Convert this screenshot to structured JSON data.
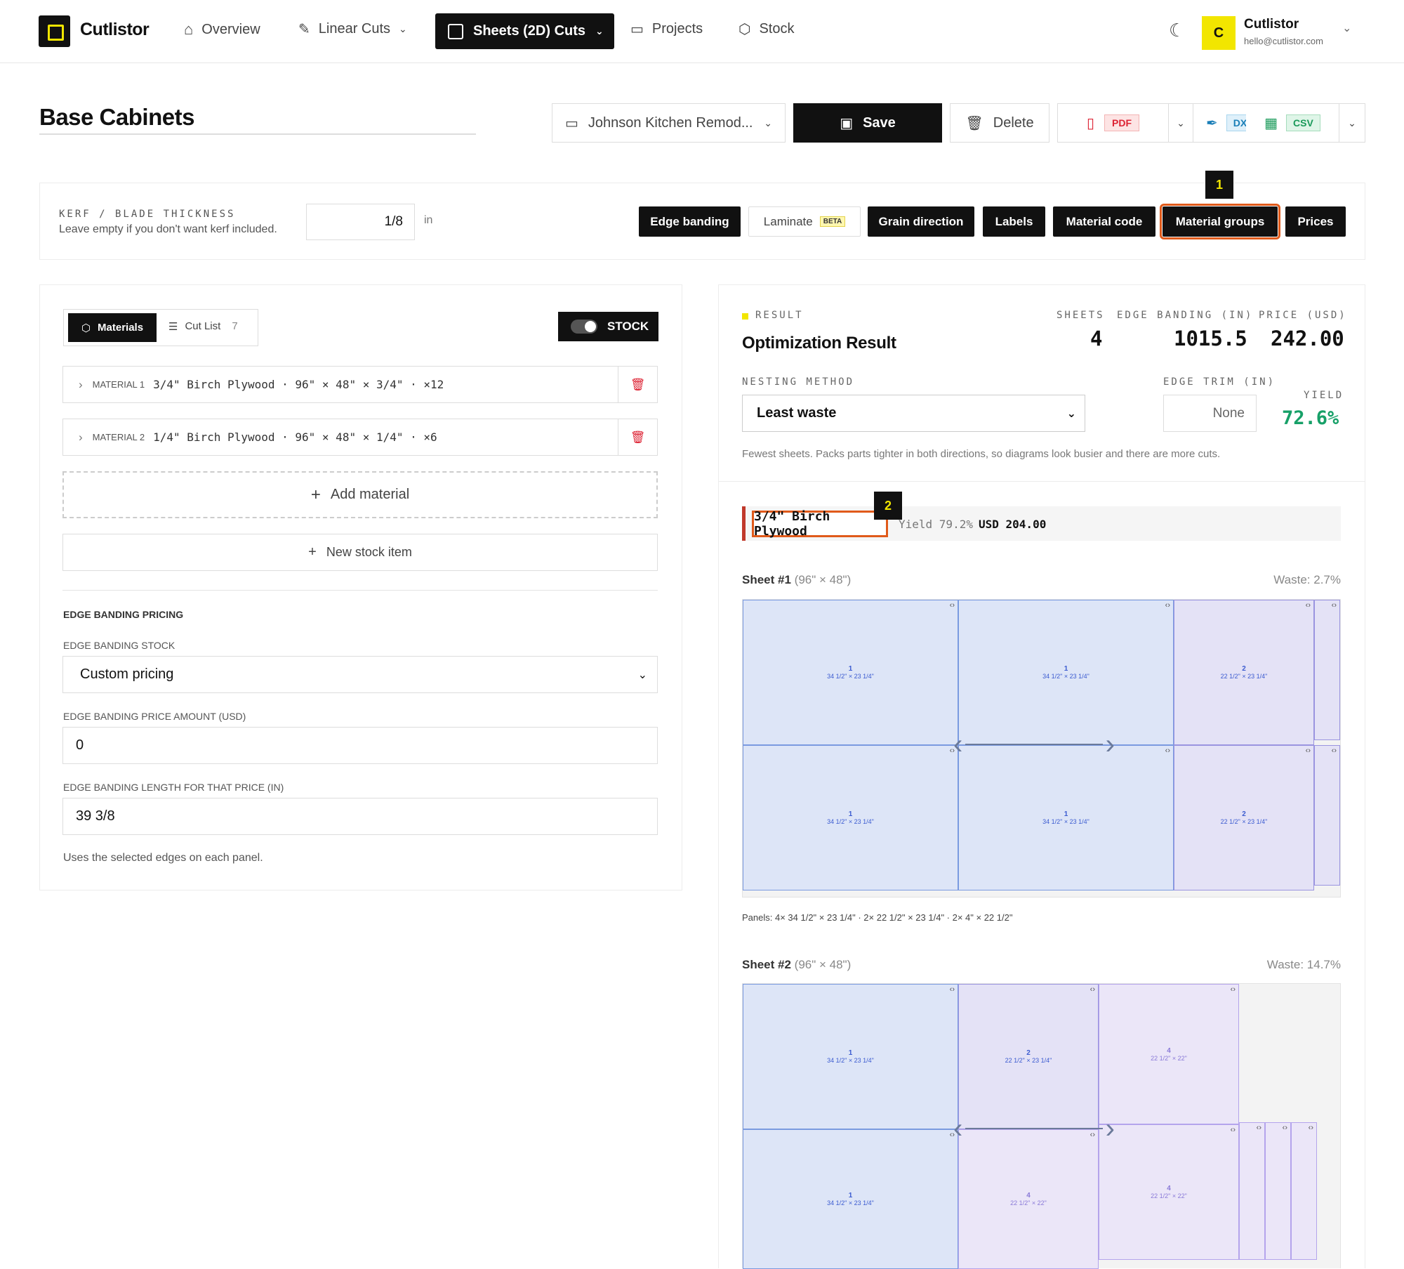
{
  "nav": {
    "brand": "Cutlistor",
    "items": [
      {
        "label": "Overview",
        "icon": "home-icon"
      },
      {
        "label": "Linear Cuts",
        "icon": "ruler-icon"
      },
      {
        "label": "Sheets (2D) Cuts",
        "icon": "square-icon"
      },
      {
        "label": "Projects",
        "icon": "folder-icon"
      },
      {
        "label": "Stock",
        "icon": "box-icon"
      }
    ],
    "user": {
      "initial": "C",
      "name": "Cutlistor",
      "email": "hello@cutlistor.com"
    }
  },
  "header": {
    "title": "Base Cabinets",
    "project": "Johnson Kitchen Remod...",
    "save": "Save",
    "delete": "Delete",
    "pdf": "PDF",
    "dxf": "DXF",
    "csv": "CSV"
  },
  "settings": {
    "kerf_label": "KERF / BLADE THICKNESS",
    "kerf_hint": "Leave empty if you don't want kerf included.",
    "kerf_value": "1/8",
    "kerf_unit": "in",
    "tags": [
      "Edge banding",
      "Laminate",
      "Grain direction",
      "Labels",
      "Material code",
      "Material groups",
      "Prices"
    ],
    "beta": "BETA"
  },
  "callouts": [
    "1",
    "2"
  ],
  "left": {
    "tab_materials": "Materials",
    "tab_cutlist": "Cut List",
    "cutlist_count": "7",
    "stock": "STOCK",
    "materials": [
      {
        "tag": "MATERIAL 1",
        "desc": "3/4\" Birch Plywood · 96\" × 48\" × 3/4\" · ×12"
      },
      {
        "tag": "MATERIAL 2",
        "desc": "1/4\" Birch Plywood · 96\" × 48\" × 1/4\" · ×6"
      }
    ],
    "add_material": "Add material",
    "new_stock": "New stock item",
    "eb_heading": "EDGE BANDING PRICING",
    "eb_stock_label": "EDGE BANDING STOCK",
    "eb_stock_value": "Custom pricing",
    "eb_price_label": "EDGE BANDING PRICE AMOUNT (USD)",
    "eb_price_value": "0",
    "eb_len_label": "EDGE BANDING LENGTH FOR THAT PRICE (IN)",
    "eb_len_value": "39 3/8",
    "eb_note": "Uses the selected edges on each panel."
  },
  "result": {
    "label": "RESULT",
    "title": "Optimization Result",
    "sheets_label": "SHEETS",
    "sheets": "4",
    "eb_label": "EDGE BANDING (IN)",
    "eb": "1015.5",
    "price_label": "PRICE (USD)",
    "price": "242.00",
    "nesting_label": "NESTING METHOD",
    "nesting": "Least waste",
    "trim_label": "EDGE TRIM (IN)",
    "trim": "None",
    "yield_label": "YIELD",
    "yield": "72.6%",
    "note": "Fewest sheets. Packs parts tighter in both directions, so diagrams look busier and there are more cuts.",
    "group_name": "3/4\" Birch Plywood",
    "group_yield": "Yield 79.2%",
    "group_price": "USD 204.00",
    "sheet1": {
      "title": "Sheet #1",
      "dims": "(96\" × 48\")",
      "waste": "Waste: 2.7%",
      "panels": "Panels: 4× 34 1/2\" × 23 1/4\" · 2× 22 1/2\" × 23 1/4\" · 2× 4\" × 22 1/2\""
    },
    "sheet2": {
      "title": "Sheet #2",
      "dims": "(96\" × 48\")",
      "waste": "Waste: 14.7%"
    },
    "part_labels": {
      "p1": "34 1/2\" × 23 1/4\"",
      "p2": "22 1/2\" × 23 1/4\"",
      "p4": "22 1/2\" × 22\""
    }
  }
}
